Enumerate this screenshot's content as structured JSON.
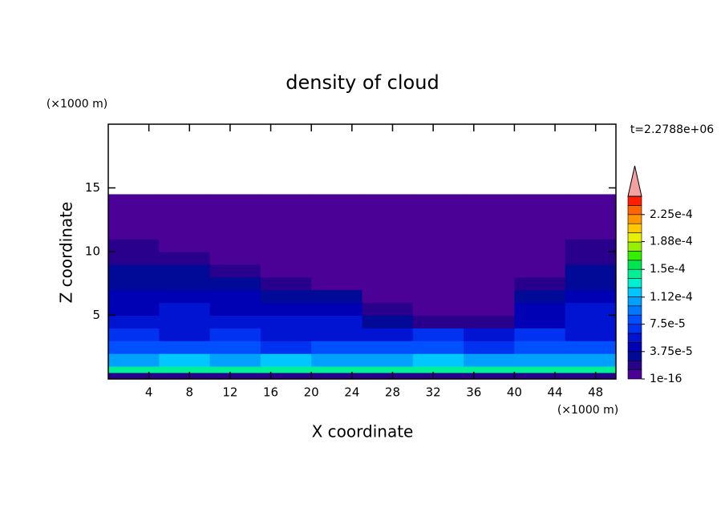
{
  "chart_data": {
    "type": "contour",
    "title": "density of cloud",
    "x_label": "X coordinate",
    "y_label": "Z coordinate",
    "x_unit": "(×1000 m)",
    "y_unit": "(×1000 m)",
    "time_label": "t=2.2788e+06",
    "xlim": [
      0,
      50
    ],
    "ylim": [
      0,
      20
    ],
    "xticks": [
      4,
      8,
      12,
      16,
      20,
      24,
      28,
      32,
      36,
      40,
      44,
      48
    ],
    "yticks": [
      5,
      10,
      15
    ],
    "field": {
      "x_edges": [
        0,
        5,
        10,
        15,
        20,
        25,
        30,
        35,
        40,
        45,
        50
      ],
      "z_edges": [
        0,
        0.5,
        1,
        2,
        3,
        4,
        5,
        6,
        7,
        8,
        9,
        10,
        11,
        14.5
      ],
      "values": [
        [
          1.5e-05,
          2e-05,
          1.5e-05,
          2e-05,
          1.5e-05,
          2e-05,
          1.5e-05,
          2e-05,
          1.5e-05,
          2e-05
        ],
        [
          0.00014,
          0.000145,
          0.00014,
          0.00015,
          0.00014,
          0.000145,
          0.00014,
          0.00015,
          0.00014,
          0.000145
        ],
        [
          0.00011,
          0.000115,
          0.00011,
          0.00012,
          0.000105,
          0.00011,
          0.000115,
          0.00011,
          0.000105,
          0.00011
        ],
        [
          8e-05,
          8.5e-05,
          8e-05,
          7.5e-05,
          8e-05,
          8.5e-05,
          8e-05,
          7.5e-05,
          8e-05,
          8.5e-05
        ],
        [
          6.5e-05,
          6e-05,
          6.5e-05,
          6e-05,
          5.5e-05,
          6e-05,
          6.5e-05,
          6e-05,
          6.5e-05,
          6e-05
        ],
        [
          5e-05,
          5.5e-05,
          5e-05,
          5e-05,
          5e-05,
          3e-05,
          2e-05,
          2e-05,
          4.5e-05,
          5e-05
        ],
        [
          4.5e-05,
          5e-05,
          4.5e-05,
          4.5e-05,
          4e-05,
          2e-05,
          1e-05,
          1e-05,
          4.5e-05,
          5e-05
        ],
        [
          4e-05,
          4e-05,
          4e-05,
          3.5e-05,
          2.5e-05,
          1e-05,
          8e-06,
          8e-06,
          3.5e-05,
          4e-05
        ],
        [
          3.5e-05,
          3e-05,
          3e-05,
          2e-05,
          5e-06,
          5e-06,
          5e-06,
          5e-06,
          1.5e-05,
          3e-05
        ],
        [
          3e-05,
          2.5e-05,
          1.5e-05,
          5e-06,
          5e-06,
          5e-06,
          5e-06,
          5e-06,
          5e-06,
          2.5e-05
        ],
        [
          2e-05,
          2e-05,
          5e-06,
          5e-06,
          5e-06,
          5e-06,
          5e-06,
          5e-06,
          5e-06,
          1.5e-05
        ],
        [
          1.5e-05,
          5e-06,
          5e-06,
          5e-06,
          5e-06,
          5e-06,
          5e-06,
          5e-06,
          5e-06,
          1.5e-05
        ],
        [
          5e-06,
          5e-06,
          5e-06,
          5e-06,
          5e-06,
          5e-06,
          5e-06,
          5e-06,
          5e-06,
          5e-06
        ]
      ]
    },
    "colorbar": {
      "clim": [
        0,
        0.00025
      ],
      "colors": [
        "#4b0096",
        "#28008c",
        "#000a96",
        "#0000b4",
        "#0014d2",
        "#0032f0",
        "#0050ff",
        "#0078ff",
        "#00a0ff",
        "#00c8ff",
        "#00f0d2",
        "#00f096",
        "#00e650",
        "#32f000",
        "#96f000",
        "#e6f000",
        "#ffc800",
        "#ff9600",
        "#ff6400",
        "#ff1e00"
      ],
      "extend_color": "#f5a0a0",
      "ticks": [
        {
          "value": 1e-16,
          "label": "1e-16"
        },
        {
          "value": 3.75e-05,
          "label": "3.75e-5"
        },
        {
          "value": 7.5e-05,
          "label": "7.5e-5"
        },
        {
          "value": 0.000112,
          "label": "1.12e-4"
        },
        {
          "value": 0.00015,
          "label": "1.5e-4"
        },
        {
          "value": 0.000188,
          "label": "1.88e-4"
        },
        {
          "value": 0.000225,
          "label": "2.25e-4"
        }
      ]
    }
  }
}
